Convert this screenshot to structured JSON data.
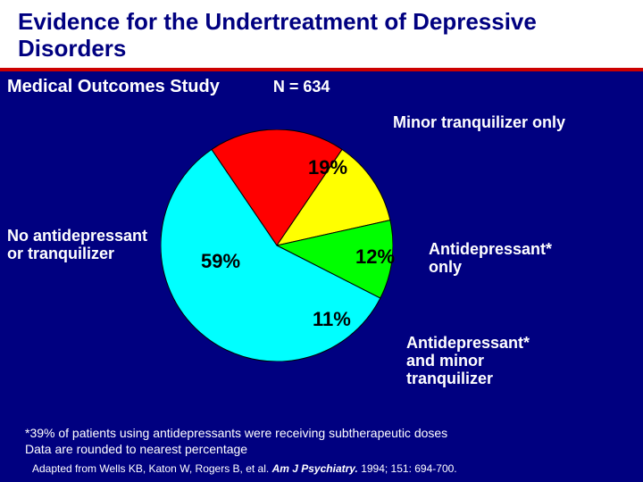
{
  "title": "Evidence for the Undertreatment of Depressive Disorders",
  "subtitle": "Medical Outcomes Study",
  "n_label": "N = 634",
  "chart": {
    "type": "pie",
    "background_color": "#000080",
    "stroke": "#000000",
    "stroke_width": 1,
    "radius": 130,
    "slices": [
      {
        "label": "Minor tranquilizer only",
        "value": 19,
        "pct_text": "19%",
        "color": "#ff0000",
        "start_deg": -34.2,
        "end_deg": 34.2
      },
      {
        "label": "Antidepressant* only",
        "value": 12,
        "pct_text": "12%",
        "color": "#ffff00",
        "start_deg": 34.2,
        "end_deg": 77.4
      },
      {
        "label": "Antidepressant* and minor tranquilizer",
        "value": 11,
        "pct_text": "11%",
        "color": "#00ff00",
        "start_deg": 77.4,
        "end_deg": 117.0
      },
      {
        "label": "No antidepressant or tranquilizer",
        "value": 59,
        "pct_text": "59%",
        "color": "#00ffff",
        "start_deg": 117.0,
        "end_deg": 325.8
      }
    ],
    "label_fontsize": 18,
    "pct_fontsize": 22
  },
  "footnote_line1": "*39% of patients using antidepressants were receiving subtherapeutic doses",
  "footnote_line2": "Data are rounded to nearest percentage",
  "citation_prefix": "Adapted from Wells KB, Katon W, Rogers B, et al. ",
  "citation_journal": "Am J Psychiatry.",
  "citation_suffix": " 1994; 151: 694-700."
}
